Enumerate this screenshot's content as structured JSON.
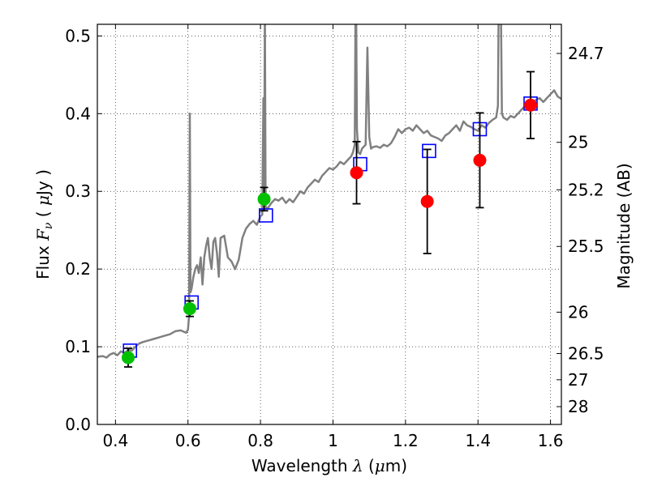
{
  "chart_data": {
    "type": "scatter",
    "xlabel": "Wavelength  λ (μm)",
    "ylabel": "Flux  Fν  ( μJy )",
    "y2label": "Magnitude (AB)",
    "xlim": [
      0.35,
      1.63
    ],
    "ylim": [
      0.0,
      0.515
    ],
    "grid": true,
    "x_ticks": [
      0.4,
      0.6,
      0.8,
      1.0,
      1.2,
      1.4,
      1.6
    ],
    "x_tick_labels": [
      "0.4",
      "0.6",
      "0.8",
      "1",
      "1.2",
      "1.4",
      "1.6"
    ],
    "y_ticks": [
      0.0,
      0.1,
      0.2,
      0.3,
      0.4,
      0.5
    ],
    "y_tick_labels": [
      "0.0",
      "0.1",
      "0.2",
      "0.3",
      "0.4",
      "0.5"
    ],
    "mag_ticks": [
      {
        "label": "24.7",
        "flux": 0.4775
      },
      {
        "label": "25",
        "flux": 0.3631
      },
      {
        "label": "25.2",
        "flux": 0.302
      },
      {
        "label": "25.5",
        "flux": 0.2291
      },
      {
        "label": "26",
        "flux": 0.1445
      },
      {
        "label": "26.5",
        "flux": 0.0912
      },
      {
        "label": "27",
        "flux": 0.0575
      },
      {
        "label": "28",
        "flux": 0.0229
      }
    ],
    "series": [
      {
        "kind": "line",
        "color": "#808080",
        "points": [
          [
            0.35,
            0.087
          ],
          [
            0.365,
            0.088
          ],
          [
            0.375,
            0.086
          ],
          [
            0.385,
            0.09
          ],
          [
            0.395,
            0.092
          ],
          [
            0.405,
            0.089
          ],
          [
            0.415,
            0.094
          ],
          [
            0.425,
            0.092
          ],
          [
            0.435,
            0.096
          ],
          [
            0.445,
            0.095
          ],
          [
            0.455,
            0.1
          ],
          [
            0.465,
            0.104
          ],
          [
            0.475,
            0.106
          ],
          [
            0.49,
            0.108
          ],
          [
            0.505,
            0.11
          ],
          [
            0.52,
            0.112
          ],
          [
            0.535,
            0.114
          ],
          [
            0.55,
            0.116
          ],
          [
            0.565,
            0.12
          ],
          [
            0.58,
            0.121
          ],
          [
            0.595,
            0.118
          ],
          [
            0.6,
            0.122
          ],
          [
            0.603,
            0.14
          ],
          [
            0.605,
            0.4
          ],
          [
            0.607,
            0.17
          ],
          [
            0.61,
            0.175
          ],
          [
            0.615,
            0.19
          ],
          [
            0.62,
            0.2
          ],
          [
            0.625,
            0.205
          ],
          [
            0.63,
            0.195
          ],
          [
            0.635,
            0.215
          ],
          [
            0.64,
            0.18
          ],
          [
            0.645,
            0.215
          ],
          [
            0.65,
            0.23
          ],
          [
            0.655,
            0.24
          ],
          [
            0.66,
            0.215
          ],
          [
            0.665,
            0.2
          ],
          [
            0.67,
            0.235
          ],
          [
            0.675,
            0.24
          ],
          [
            0.68,
            0.22
          ],
          [
            0.685,
            0.19
          ],
          [
            0.69,
            0.24
          ],
          [
            0.7,
            0.243
          ],
          [
            0.71,
            0.215
          ],
          [
            0.72,
            0.21
          ],
          [
            0.73,
            0.2
          ],
          [
            0.74,
            0.212
          ],
          [
            0.75,
            0.24
          ],
          [
            0.76,
            0.252
          ],
          [
            0.77,
            0.258
          ],
          [
            0.78,
            0.262
          ],
          [
            0.79,
            0.257
          ],
          [
            0.8,
            0.268
          ],
          [
            0.805,
            0.27
          ],
          [
            0.808,
            0.42
          ],
          [
            0.81,
            0.28
          ],
          [
            0.812,
            0.54
          ],
          [
            0.814,
            0.28
          ],
          [
            0.82,
            0.278
          ],
          [
            0.83,
            0.285
          ],
          [
            0.84,
            0.29
          ],
          [
            0.85,
            0.288
          ],
          [
            0.86,
            0.292
          ],
          [
            0.87,
            0.285
          ],
          [
            0.88,
            0.29
          ],
          [
            0.89,
            0.286
          ],
          [
            0.9,
            0.293
          ],
          [
            0.91,
            0.3
          ],
          [
            0.92,
            0.297
          ],
          [
            0.93,
            0.305
          ],
          [
            0.94,
            0.31
          ],
          [
            0.95,
            0.315
          ],
          [
            0.96,
            0.312
          ],
          [
            0.97,
            0.32
          ],
          [
            0.98,
            0.325
          ],
          [
            0.99,
            0.33
          ],
          [
            1.0,
            0.328
          ],
          [
            1.01,
            0.332
          ],
          [
            1.02,
            0.338
          ],
          [
            1.03,
            0.335
          ],
          [
            1.04,
            0.34
          ],
          [
            1.05,
            0.345
          ],
          [
            1.055,
            0.35
          ],
          [
            1.06,
            0.36
          ],
          [
            1.063,
            0.6
          ],
          [
            1.066,
            0.38
          ],
          [
            1.07,
            0.35
          ],
          [
            1.075,
            0.348
          ],
          [
            1.08,
            0.355
          ],
          [
            1.09,
            0.36
          ],
          [
            1.095,
            0.485
          ],
          [
            1.1,
            0.37
          ],
          [
            1.105,
            0.355
          ],
          [
            1.11,
            0.357
          ],
          [
            1.12,
            0.358
          ],
          [
            1.13,
            0.356
          ],
          [
            1.14,
            0.36
          ],
          [
            1.15,
            0.358
          ],
          [
            1.16,
            0.362
          ],
          [
            1.17,
            0.37
          ],
          [
            1.18,
            0.38
          ],
          [
            1.19,
            0.375
          ],
          [
            1.2,
            0.38
          ],
          [
            1.21,
            0.382
          ],
          [
            1.22,
            0.378
          ],
          [
            1.23,
            0.385
          ],
          [
            1.24,
            0.38
          ],
          [
            1.25,
            0.375
          ],
          [
            1.26,
            0.378
          ],
          [
            1.27,
            0.372
          ],
          [
            1.28,
            0.37
          ],
          [
            1.29,
            0.368
          ],
          [
            1.3,
            0.365
          ],
          [
            1.31,
            0.372
          ],
          [
            1.32,
            0.375
          ],
          [
            1.33,
            0.38
          ],
          [
            1.34,
            0.385
          ],
          [
            1.35,
            0.378
          ],
          [
            1.36,
            0.39
          ],
          [
            1.37,
            0.385
          ],
          [
            1.38,
            0.383
          ],
          [
            1.39,
            0.38
          ],
          [
            1.4,
            0.378
          ],
          [
            1.41,
            0.385
          ],
          [
            1.42,
            0.382
          ],
          [
            1.43,
            0.388
          ],
          [
            1.44,
            0.392
          ],
          [
            1.45,
            0.395
          ],
          [
            1.455,
            0.41
          ],
          [
            1.458,
            0.6
          ],
          [
            1.462,
            0.6
          ],
          [
            1.466,
            0.4
          ],
          [
            1.47,
            0.395
          ],
          [
            1.48,
            0.392
          ],
          [
            1.49,
            0.397
          ],
          [
            1.5,
            0.395
          ],
          [
            1.51,
            0.4
          ],
          [
            1.52,
            0.405
          ],
          [
            1.53,
            0.41
          ],
          [
            1.54,
            0.415
          ],
          [
            1.55,
            0.41
          ],
          [
            1.56,
            0.418
          ],
          [
            1.57,
            0.42
          ],
          [
            1.58,
            0.415
          ],
          [
            1.59,
            0.42
          ],
          [
            1.6,
            0.425
          ],
          [
            1.61,
            0.43
          ],
          [
            1.62,
            0.422
          ],
          [
            1.63,
            0.419
          ]
        ]
      },
      {
        "kind": "squares",
        "color": "#0000ff",
        "x": [
          0.44,
          0.61,
          0.815,
          1.075,
          1.265,
          1.405,
          1.545
        ],
        "y": [
          0.095,
          0.157,
          0.269,
          0.335,
          0.352,
          0.38,
          0.413
        ]
      },
      {
        "kind": "points",
        "color": "#00c000",
        "x": [
          0.435,
          0.605,
          0.81
        ],
        "y": [
          0.086,
          0.149,
          0.29
        ],
        "yerr": [
          0.012,
          0.01,
          0.015
        ]
      },
      {
        "kind": "points",
        "color": "#ff0000",
        "x": [
          1.065,
          1.26,
          1.405,
          1.545
        ],
        "y": [
          0.324,
          0.287,
          0.34,
          0.411
        ],
        "yerr": [
          0.04,
          0.067,
          0.061,
          0.043
        ]
      }
    ]
  }
}
